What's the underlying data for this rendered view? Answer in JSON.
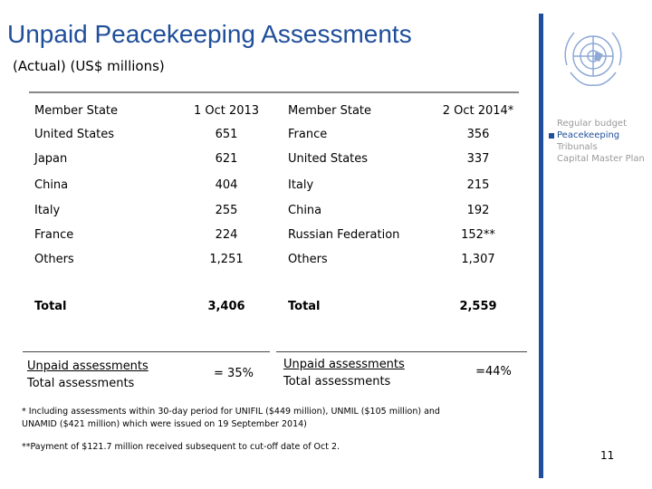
{
  "header": {
    "title": "Unpaid Peacekeeping Assessments",
    "subtitle": "(Actual) (US$ millions)"
  },
  "table": {
    "columns": [
      "Member State",
      "1 Oct 2013",
      "Member State",
      "2 Oct 2014*"
    ],
    "rows": [
      [
        "United States",
        "651",
        "France",
        "356"
      ],
      [
        "Japan",
        "621",
        "United States",
        "337"
      ],
      [
        "China",
        "404",
        "Italy",
        "215"
      ],
      [
        "Italy",
        "255",
        "China",
        "192"
      ],
      [
        "France",
        "224",
        "Russian Federation",
        "152**"
      ],
      [
        "Others",
        "1,251",
        "Others",
        "1,307"
      ]
    ],
    "total": [
      "Total",
      "3,406",
      "Total",
      "2,559"
    ]
  },
  "ratios": [
    {
      "numerator": "Unpaid assessments",
      "denominator": "Total assessments",
      "value": "= 35%"
    },
    {
      "numerator": "Unpaid assessments",
      "denominator": "Total assessments",
      "value": "=44%"
    }
  ],
  "footnotes": [
    "* Including assessments within 30-day period for UNIFIL ($449 million), UNMIL ($105 million) and UNAMID ($421 million) which were issued on 19 September 2014)",
    "**Payment of $121.7 million received subsequent to cut-off date of Oct 2."
  ],
  "legend": [
    "Regular budget",
    "Peacekeeping",
    "Tribunals",
    "Capital Master Plan"
  ],
  "page_number": "11"
}
